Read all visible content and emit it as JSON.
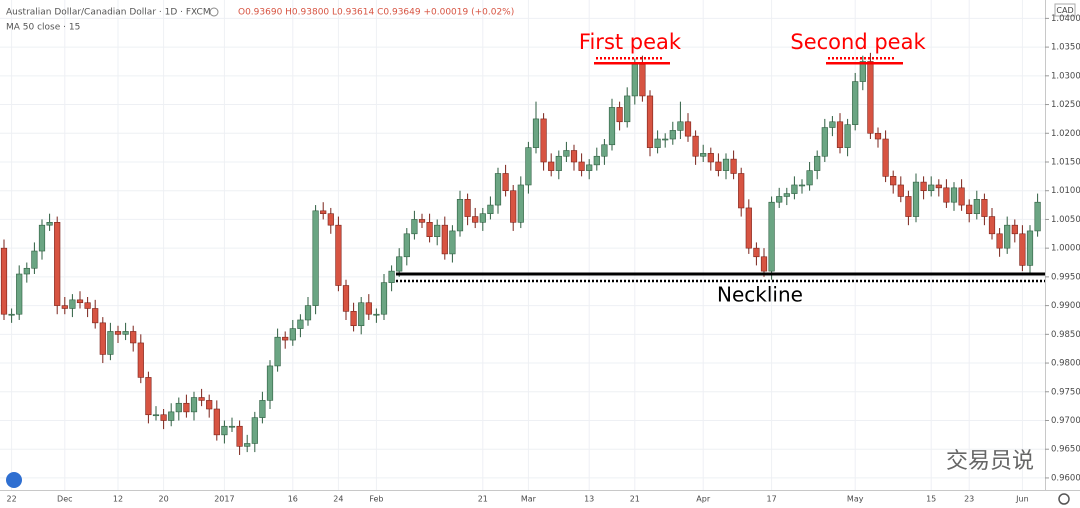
{
  "chart_data": {
    "type": "candlestick",
    "title": "Australian Dollar/Canadian Dollar · 1D · FXCM",
    "ohlc_legend": "O0.93690 H0.93800 L0.93614 C0.93649 +0.00019 (+0.02%)",
    "indicator": "MA 50 close · 15",
    "currency": "CAD",
    "watermark": "交易员说",
    "up_color": "#6ba583",
    "down_color": "#d75442",
    "ylim": [
      0.9579,
      1.0432
    ],
    "yticks": [
      {
        "value": 0.96,
        "label": "0.96000"
      },
      {
        "value": 0.965,
        "label": "0.96500"
      },
      {
        "value": 0.97,
        "label": "0.97000"
      },
      {
        "value": 0.975,
        "label": "0.97500"
      },
      {
        "value": 0.98,
        "label": "0.98000"
      },
      {
        "value": 0.985,
        "label": "0.98500"
      },
      {
        "value": 0.99,
        "label": "0.99000"
      },
      {
        "value": 0.995,
        "label": "0.99500"
      },
      {
        "value": 1.0,
        "label": "1.00000"
      },
      {
        "value": 1.005,
        "label": "1.00500"
      },
      {
        "value": 1.01,
        "label": "1.01000"
      },
      {
        "value": 1.015,
        "label": "1.01500"
      },
      {
        "value": 1.02,
        "label": "1.02000"
      },
      {
        "value": 1.025,
        "label": "1.02500"
      },
      {
        "value": 1.03,
        "label": "1.03000"
      },
      {
        "value": 1.035,
        "label": "1.03500"
      },
      {
        "value": 1.04,
        "label": "1.04000"
      }
    ],
    "grid": true,
    "annotations": [
      {
        "text": "First peak",
        "value": 1.0322,
        "color": "#ff0000"
      },
      {
        "text": "Second peak",
        "value": 1.0322,
        "color": "#ff0000"
      },
      {
        "text": "Neckline",
        "value": 0.9955,
        "color": "#000000"
      }
    ],
    "categories": [
      null,
      "22",
      null,
      null,
      null,
      null,
      null,
      null,
      "Dec",
      null,
      null,
      null,
      null,
      null,
      null,
      "12",
      null,
      null,
      null,
      null,
      null,
      "20",
      null,
      null,
      null,
      null,
      null,
      null,
      null,
      "2017",
      null,
      null,
      null,
      null,
      null,
      null,
      null,
      null,
      "16",
      null,
      null,
      null,
      null,
      null,
      "24",
      null,
      null,
      null,
      null,
      "Feb",
      null,
      null,
      null,
      null,
      null,
      null,
      null,
      null,
      null,
      null,
      null,
      null,
      null,
      "21",
      null,
      null,
      null,
      null,
      null,
      "Mar",
      null,
      null,
      null,
      null,
      null,
      null,
      null,
      "13",
      null,
      null,
      null,
      null,
      null,
      "21",
      null,
      null,
      null,
      null,
      null,
      null,
      null,
      null,
      "Apr",
      null,
      null,
      null,
      null,
      null,
      null,
      null,
      null,
      "17",
      null,
      null,
      null,
      null,
      null,
      null,
      null,
      null,
      null,
      null,
      "May",
      null,
      null,
      null,
      null,
      null,
      null,
      null,
      null,
      null,
      "15",
      null,
      null,
      null,
      null,
      "23",
      null,
      null,
      null,
      null,
      null,
      null,
      "Jun",
      null,
      null
    ],
    "ohlc": [
      [
        1.0,
        1.0015,
        0.9875,
        0.9885
      ],
      [
        0.9885,
        0.9895,
        0.987,
        0.9885
      ],
      [
        0.9885,
        0.997,
        0.9875,
        0.9955
      ],
      [
        0.9955,
        0.9975,
        0.994,
        0.9965
      ],
      [
        0.9965,
        1.001,
        0.9955,
        0.9995
      ],
      [
        0.9995,
        1.005,
        0.998,
        1.004
      ],
      [
        1.004,
        1.006,
        1.003,
        1.0045
      ],
      [
        1.0045,
        1.0055,
        0.9885,
        0.99
      ],
      [
        0.99,
        0.9915,
        0.9885,
        0.9895
      ],
      [
        0.9895,
        0.992,
        0.988,
        0.991
      ],
      [
        0.991,
        0.9925,
        0.9895,
        0.9905
      ],
      [
        0.9905,
        0.9915,
        0.988,
        0.9895
      ],
      [
        0.9895,
        0.991,
        0.986,
        0.987
      ],
      [
        0.987,
        0.988,
        0.98,
        0.9815
      ],
      [
        0.9815,
        0.987,
        0.9805,
        0.9855
      ],
      [
        0.9855,
        0.9865,
        0.9835,
        0.985
      ],
      [
        0.985,
        0.987,
        0.984,
        0.9855
      ],
      [
        0.9855,
        0.9865,
        0.982,
        0.9835
      ],
      [
        0.9835,
        0.985,
        0.9765,
        0.9775
      ],
      [
        0.9775,
        0.9785,
        0.9695,
        0.971
      ],
      [
        0.971,
        0.9725,
        0.97,
        0.971
      ],
      [
        0.971,
        0.972,
        0.9685,
        0.97
      ],
      [
        0.97,
        0.973,
        0.969,
        0.9715
      ],
      [
        0.9715,
        0.974,
        0.97,
        0.973
      ],
      [
        0.973,
        0.9745,
        0.9705,
        0.9715
      ],
      [
        0.9715,
        0.975,
        0.97,
        0.974
      ],
      [
        0.974,
        0.9755,
        0.9725,
        0.9735
      ],
      [
        0.9735,
        0.9745,
        0.9705,
        0.972
      ],
      [
        0.972,
        0.9735,
        0.9665,
        0.9675
      ],
      [
        0.9675,
        0.97,
        0.966,
        0.969
      ],
      [
        0.969,
        0.9705,
        0.968,
        0.969
      ],
      [
        0.969,
        0.97,
        0.964,
        0.9655
      ],
      [
        0.9655,
        0.9675,
        0.9645,
        0.966
      ],
      [
        0.966,
        0.9715,
        0.9645,
        0.9705
      ],
      [
        0.9705,
        0.975,
        0.9695,
        0.9735
      ],
      [
        0.9735,
        0.9805,
        0.972,
        0.9795
      ],
      [
        0.9795,
        0.986,
        0.9785,
        0.9845
      ],
      [
        0.9845,
        0.9855,
        0.9825,
        0.984
      ],
      [
        0.984,
        0.9875,
        0.983,
        0.986
      ],
      [
        0.986,
        0.9885,
        0.9845,
        0.9875
      ],
      [
        0.9875,
        0.9915,
        0.9865,
        0.99
      ],
      [
        0.99,
        1.0075,
        0.9885,
        1.0065
      ],
      [
        1.0065,
        1.008,
        1.005,
        1.006
      ],
      [
        1.006,
        1.007,
        1.0025,
        1.004
      ],
      [
        1.004,
        1.0055,
        0.9925,
        0.9935
      ],
      [
        0.9935,
        0.9945,
        0.9875,
        0.989
      ],
      [
        0.989,
        0.9905,
        0.9855,
        0.9865
      ],
      [
        0.9865,
        0.9915,
        0.985,
        0.9905
      ],
      [
        0.9905,
        0.992,
        0.9875,
        0.9885
      ],
      [
        0.9885,
        0.9895,
        0.987,
        0.9885
      ],
      [
        0.9885,
        0.9955,
        0.9875,
        0.994
      ],
      [
        0.994,
        0.997,
        0.9925,
        0.996
      ],
      [
        0.996,
        1.0,
        0.995,
        0.9985
      ],
      [
        0.9985,
        1.0035,
        0.997,
        1.0025
      ],
      [
        1.0025,
        1.0065,
        1.0015,
        1.005
      ],
      [
        1.005,
        1.006,
        1.0035,
        1.0045
      ],
      [
        1.0045,
        1.006,
        1.001,
        1.002
      ],
      [
        1.002,
        1.005,
        1.0005,
        1.004
      ],
      [
        1.004,
        1.0055,
        0.998,
        0.999
      ],
      [
        0.999,
        1.004,
        0.9975,
        1.003
      ],
      [
        1.003,
        1.01,
        1.002,
        1.0085
      ],
      [
        1.0085,
        1.0095,
        1.004,
        1.0055
      ],
      [
        1.0055,
        1.007,
        1.0035,
        1.0045
      ],
      [
        1.0045,
        1.007,
        1.003,
        1.006
      ],
      [
        1.006,
        1.009,
        1.005,
        1.0075
      ],
      [
        1.0075,
        1.014,
        1.006,
        1.013
      ],
      [
        1.013,
        1.0145,
        1.009,
        1.01
      ],
      [
        1.01,
        1.011,
        1.003,
        1.0045
      ],
      [
        1.0045,
        1.0125,
        1.0035,
        1.011
      ],
      [
        1.011,
        1.0185,
        1.0095,
        1.0175
      ],
      [
        1.0175,
        1.0255,
        1.0165,
        1.0225
      ],
      [
        1.0225,
        1.0235,
        1.0135,
        1.015
      ],
      [
        1.015,
        1.0165,
        1.0125,
        1.0135
      ],
      [
        1.0135,
        1.017,
        1.012,
        1.016
      ],
      [
        1.016,
        1.0185,
        1.015,
        1.017
      ],
      [
        1.017,
        1.018,
        1.0135,
        1.015
      ],
      [
        1.015,
        1.0165,
        1.0125,
        1.0135
      ],
      [
        1.0135,
        1.0155,
        1.012,
        1.0145
      ],
      [
        1.0145,
        1.0175,
        1.0135,
        1.016
      ],
      [
        1.016,
        1.019,
        1.0145,
        1.018
      ],
      [
        1.018,
        1.026,
        1.017,
        1.0245
      ],
      [
        1.0245,
        1.0255,
        1.0205,
        1.022
      ],
      [
        1.022,
        1.028,
        1.021,
        1.0265
      ],
      [
        1.0265,
        1.033,
        1.025,
        1.032
      ],
      [
        1.032,
        1.0335,
        1.0255,
        1.0265
      ],
      [
        1.0265,
        1.0275,
        1.016,
        1.0175
      ],
      [
        1.0175,
        1.0205,
        1.0165,
        1.019
      ],
      [
        1.019,
        1.02,
        1.0175,
        1.019
      ],
      [
        1.019,
        1.022,
        1.018,
        1.0205
      ],
      [
        1.0205,
        1.0255,
        1.019,
        1.022
      ],
      [
        1.022,
        1.0235,
        1.0185,
        1.0195
      ],
      [
        1.0195,
        1.0205,
        1.0145,
        1.016
      ],
      [
        1.016,
        1.018,
        1.015,
        1.0165
      ],
      [
        1.0165,
        1.0175,
        1.0135,
        1.015
      ],
      [
        1.015,
        1.0165,
        1.0125,
        1.0135
      ],
      [
        1.0135,
        1.0165,
        1.012,
        1.0155
      ],
      [
        1.0155,
        1.017,
        1.012,
        1.013
      ],
      [
        1.013,
        1.014,
        1.0055,
        1.007
      ],
      [
        1.007,
        1.0085,
        0.999,
        1.0
      ],
      [
        1.0,
        1.001,
        0.997,
        0.9985
      ],
      [
        0.9985,
        1.0,
        0.995,
        0.996
      ],
      [
        0.996,
        1.009,
        0.9945,
        1.008
      ],
      [
        1.008,
        1.0105,
        1.007,
        1.009
      ],
      [
        1.009,
        1.0105,
        1.0075,
        1.0095
      ],
      [
        1.0095,
        1.0125,
        1.0085,
        1.011
      ],
      [
        1.011,
        1.012,
        1.0095,
        1.011
      ],
      [
        1.011,
        1.015,
        1.01,
        1.0135
      ],
      [
        1.0135,
        1.017,
        1.012,
        1.016
      ],
      [
        1.016,
        1.0225,
        1.015,
        1.021
      ],
      [
        1.021,
        1.023,
        1.0195,
        1.022
      ],
      [
        1.022,
        1.0235,
        1.0165,
        1.0175
      ],
      [
        1.0175,
        1.0225,
        1.016,
        1.0215
      ],
      [
        1.0215,
        1.0305,
        1.0205,
        1.029
      ],
      [
        1.029,
        1.0335,
        1.0275,
        1.0325
      ],
      [
        1.0325,
        1.034,
        1.019,
        1.02
      ],
      [
        1.02,
        1.021,
        1.0175,
        1.019
      ],
      [
        1.019,
        1.0205,
        1.0115,
        1.0125
      ],
      [
        1.0125,
        1.0135,
        1.0095,
        1.011
      ],
      [
        1.011,
        1.0125,
        1.008,
        1.009
      ],
      [
        1.009,
        1.01,
        1.004,
        1.0055
      ],
      [
        1.0055,
        1.013,
        1.0045,
        1.0115
      ],
      [
        1.0115,
        1.0125,
        1.0085,
        1.01
      ],
      [
        1.01,
        1.0125,
        1.009,
        1.011
      ],
      [
        1.011,
        1.012,
        1.009,
        1.0105
      ],
      [
        1.0105,
        1.012,
        1.007,
        1.008
      ],
      [
        1.008,
        1.0115,
        1.0065,
        1.0105
      ],
      [
        1.0105,
        1.012,
        1.0065,
        1.0075
      ],
      [
        1.0075,
        1.0085,
        1.0045,
        1.006
      ],
      [
        1.006,
        1.01,
        1.005,
        1.0085
      ],
      [
        1.0085,
        1.0095,
        1.004,
        1.0055
      ],
      [
        1.0055,
        1.007,
        1.0015,
        1.0025
      ],
      [
        1.0025,
        1.0035,
        0.9985,
        1.0
      ],
      [
        1.0,
        1.0055,
        0.999,
        1.004
      ],
      [
        1.004,
        1.005,
        1.001,
        1.0025
      ],
      [
        1.0025,
        1.004,
        0.996,
        0.997
      ],
      [
        0.997,
        1.004,
        0.9955,
        1.003
      ],
      [
        1.003,
        1.0095,
        1.002,
        1.008
      ]
    ]
  }
}
